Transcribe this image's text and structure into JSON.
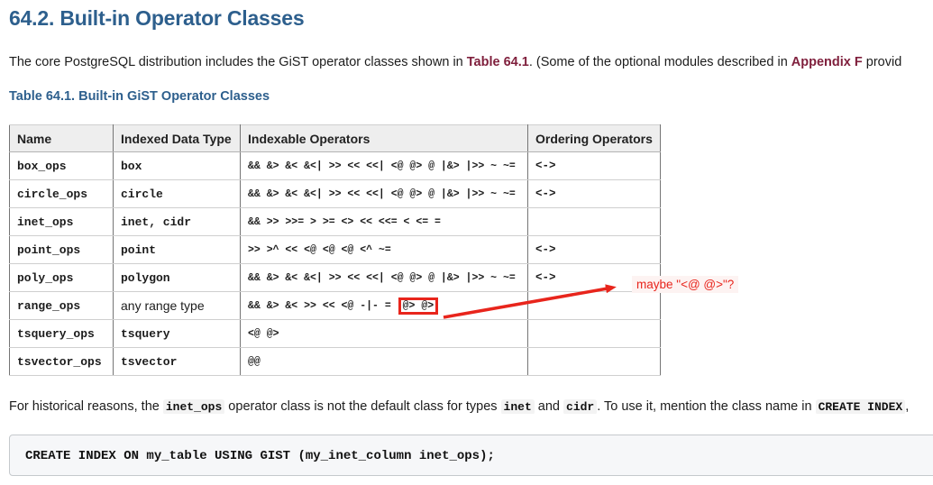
{
  "page": {
    "heading": "64.2. Built-in Operator Classes",
    "intro": {
      "text_1": "The core PostgreSQL distribution includes the GiST operator classes shown in ",
      "link_1": "Table 64.1",
      "text_2": ". (Some of the optional modules described in ",
      "link_2": "Appendix F",
      "text_3": " provid"
    },
    "table_caption": "Table 64.1. Built-in GiST Operator Classes"
  },
  "table": {
    "headers": [
      "Name",
      "Indexed Data Type",
      "Indexable Operators",
      "Ordering Operators"
    ],
    "rows": [
      {
        "name": "box_ops",
        "indexed_data_type": "box",
        "mono_type": true,
        "operators": "&& &> &< &<| >> << <<| <@ @> @ |&> |>> ~ ~=",
        "ordering": "<->"
      },
      {
        "name": "circle_ops",
        "indexed_data_type": "circle",
        "mono_type": true,
        "operators": "&& &> &< &<| >> << <<| <@ @> @ |&> |>> ~ ~=",
        "ordering": "<->"
      },
      {
        "name": "inet_ops",
        "indexed_data_type": "inet, cidr",
        "mono_type": true,
        "operators": "&& >> >>= > >= <> << <<= < <= =",
        "ordering": ""
      },
      {
        "name": "point_ops",
        "indexed_data_type": "point",
        "mono_type": true,
        "operators": ">> >^ << <@ <@ <@ <^ ~=",
        "ordering": "<->"
      },
      {
        "name": "poly_ops",
        "indexed_data_type": "polygon",
        "mono_type": true,
        "operators": "&& &> &< &<| >> << <<| <@ @> @ |&> |>> ~ ~=",
        "ordering": "<->"
      },
      {
        "name": "range_ops",
        "indexed_data_type": "any range type",
        "mono_type": false,
        "operators": "&& &> &< >> << <@ -|- = ",
        "boxed_operators": "@> @>",
        "ordering": ""
      },
      {
        "name": "tsquery_ops",
        "indexed_data_type": "tsquery",
        "mono_type": true,
        "operators": "<@ @>",
        "ordering": ""
      },
      {
        "name": "tsvector_ops",
        "indexed_data_type": "tsvector",
        "mono_type": true,
        "operators": "@@",
        "ordering": ""
      }
    ]
  },
  "annotation": {
    "label": "maybe \"<@ @>\"?",
    "boxed_text": "@> @>"
  },
  "historical_note": {
    "text_1": "For historical reasons, the ",
    "code_1": "inet_ops",
    "text_2": " operator class is not the default class for types ",
    "code_2": "inet",
    "text_3": " and ",
    "code_3": "cidr",
    "text_4": ". To use it, mention the class name in ",
    "code_4": "CREATE INDEX",
    "text_5": ","
  },
  "code_block": {
    "code": "CREATE INDEX ON my_table USING GIST (my_inet_column inet_ops);"
  },
  "colors": {
    "heading_blue": "#2d5f8d",
    "link_maroon": "#7f1f3c",
    "annotation_red": "#e8251c",
    "header_bg": "#eeeeee",
    "code_bg": "#f6f7f9"
  }
}
